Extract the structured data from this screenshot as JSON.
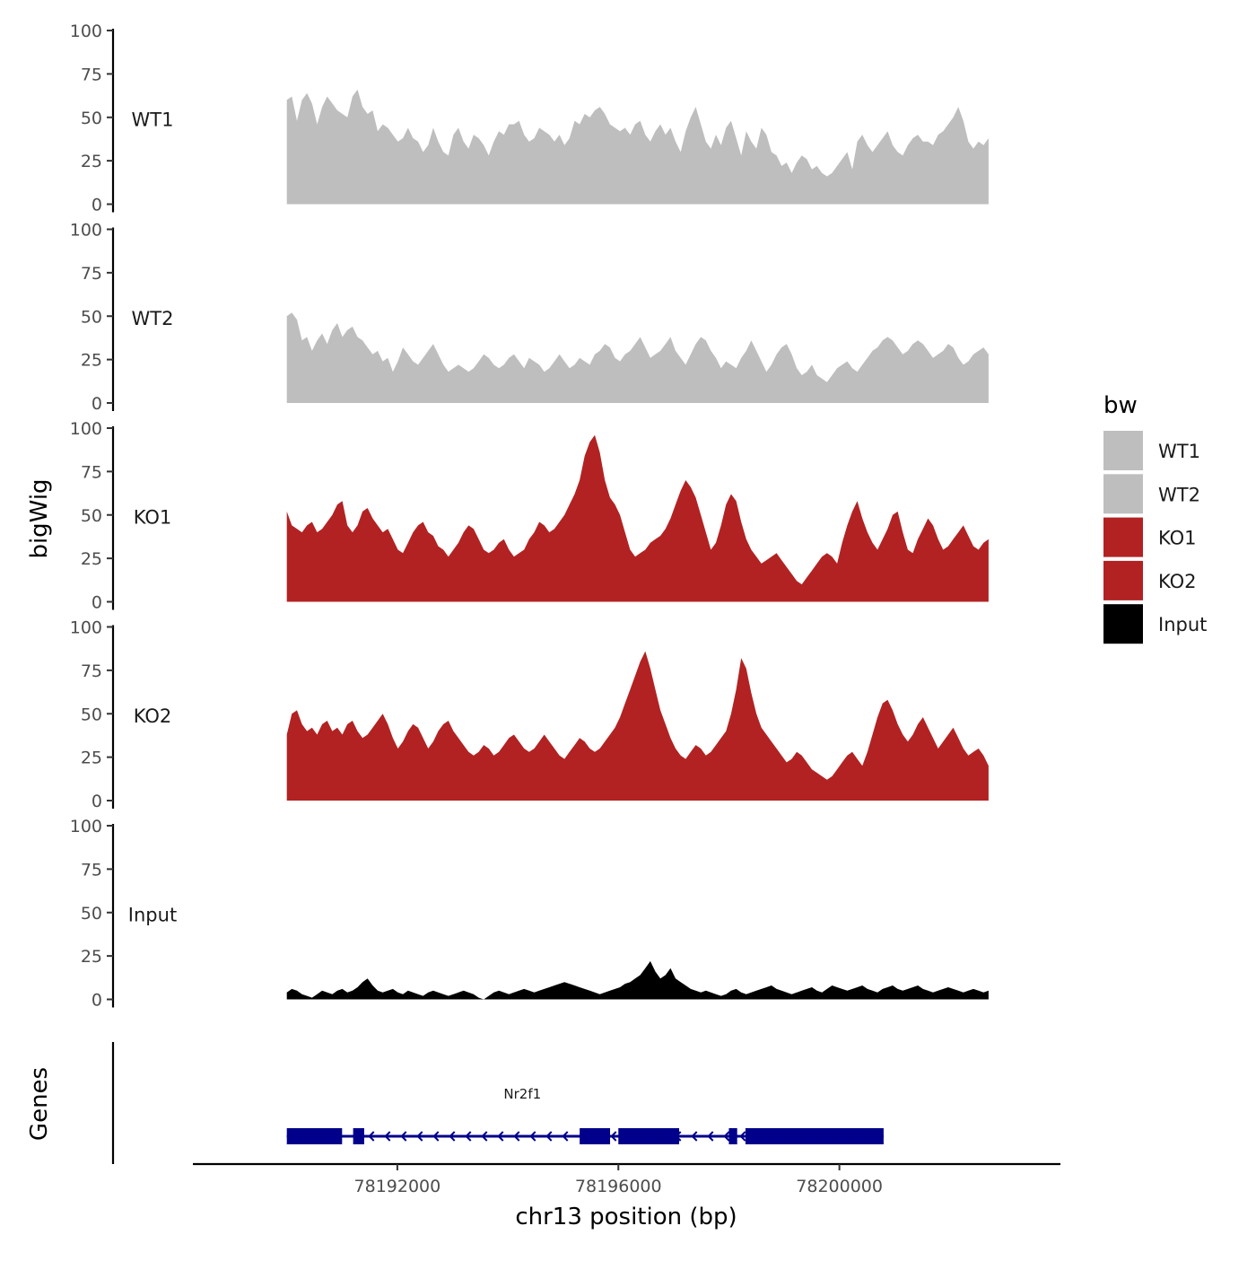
{
  "chart_data": {
    "type": "area",
    "title": "",
    "xlabel": "chr13 position (bp)",
    "ylabel": "bigWig",
    "genes_ylabel": "Genes",
    "xlim": [
      78188300,
      78204000
    ],
    "x_ticks": [
      78192000,
      78196000,
      78200000
    ],
    "x_tick_labels": [
      "78192000",
      "78196000",
      "78200000"
    ],
    "ylim": [
      0,
      100
    ],
    "y_ticks": [
      0,
      25,
      50,
      75,
      100
    ],
    "y_tick_labels": [
      "0",
      "25",
      "50",
      "75",
      "100"
    ],
    "legend": {
      "title": "bw",
      "position": "right",
      "entries": [
        {
          "label": "WT1",
          "color": "#BEBEBE"
        },
        {
          "label": "WT2",
          "color": "#BEBEBE"
        },
        {
          "label": "KO1",
          "color": "#B22222"
        },
        {
          "label": "KO2",
          "color": "#B22222"
        },
        {
          "label": "Input",
          "color": "#000000"
        }
      ]
    },
    "track_start": 78190000,
    "track_end": 78202700,
    "series": [
      {
        "name": "WT1",
        "color": "#BEBEBE",
        "values": [
          60,
          62,
          48,
          60,
          64,
          58,
          46,
          56,
          62,
          58,
          54,
          52,
          50,
          62,
          66,
          56,
          52,
          54,
          42,
          46,
          44,
          40,
          36,
          38,
          44,
          38,
          36,
          30,
          34,
          44,
          36,
          30,
          28,
          40,
          44,
          36,
          32,
          40,
          38,
          34,
          28,
          36,
          42,
          40,
          46,
          46,
          48,
          40,
          36,
          38,
          44,
          42,
          40,
          36,
          40,
          34,
          38,
          48,
          46,
          52,
          50,
          54,
          56,
          52,
          46,
          44,
          42,
          44,
          40,
          46,
          48,
          40,
          36,
          42,
          46,
          40,
          44,
          36,
          30,
          42,
          50,
          56,
          46,
          36,
          32,
          40,
          34,
          44,
          48,
          38,
          28,
          42,
          36,
          32,
          44,
          40,
          30,
          28,
          22,
          24,
          18,
          24,
          28,
          26,
          20,
          22,
          18,
          16,
          18,
          22,
          26,
          30,
          20,
          36,
          40,
          34,
          30,
          34,
          38,
          42,
          34,
          30,
          28,
          34,
          38,
          40,
          36,
          36,
          34,
          40,
          42,
          46,
          50,
          56,
          48,
          36,
          32,
          36,
          34,
          38
        ]
      },
      {
        "name": "WT2",
        "color": "#BEBEBE",
        "values": [
          50,
          52,
          48,
          36,
          38,
          30,
          36,
          40,
          34,
          42,
          46,
          38,
          42,
          44,
          38,
          36,
          32,
          28,
          30,
          24,
          26,
          18,
          24,
          32,
          28,
          24,
          22,
          26,
          30,
          34,
          28,
          22,
          18,
          20,
          22,
          20,
          18,
          20,
          24,
          28,
          26,
          22,
          20,
          22,
          26,
          28,
          24,
          20,
          26,
          24,
          22,
          18,
          20,
          24,
          28,
          24,
          20,
          22,
          26,
          24,
          22,
          28,
          30,
          34,
          32,
          26,
          24,
          28,
          30,
          34,
          38,
          32,
          26,
          28,
          30,
          34,
          38,
          30,
          26,
          22,
          28,
          34,
          38,
          36,
          30,
          26,
          20,
          24,
          22,
          20,
          26,
          30,
          36,
          30,
          24,
          18,
          22,
          28,
          32,
          34,
          28,
          20,
          16,
          18,
          22,
          16,
          14,
          12,
          16,
          20,
          22,
          24,
          20,
          18,
          22,
          26,
          30,
          32,
          36,
          38,
          36,
          32,
          28,
          30,
          34,
          36,
          34,
          30,
          26,
          28,
          30,
          34,
          32,
          26,
          22,
          24,
          28,
          30,
          32,
          28
        ]
      },
      {
        "name": "KO1",
        "color": "#B22222",
        "values": [
          52,
          44,
          42,
          40,
          44,
          46,
          40,
          42,
          46,
          50,
          56,
          58,
          44,
          40,
          44,
          52,
          54,
          48,
          44,
          40,
          42,
          36,
          30,
          28,
          34,
          40,
          44,
          46,
          40,
          38,
          32,
          30,
          26,
          30,
          34,
          40,
          44,
          42,
          36,
          30,
          28,
          30,
          34,
          36,
          30,
          26,
          28,
          30,
          36,
          40,
          46,
          44,
          40,
          42,
          46,
          50,
          56,
          62,
          70,
          84,
          92,
          96,
          86,
          70,
          60,
          56,
          50,
          40,
          30,
          26,
          28,
          30,
          34,
          36,
          38,
          42,
          48,
          56,
          64,
          70,
          66,
          60,
          50,
          40,
          30,
          34,
          44,
          56,
          62,
          58,
          46,
          36,
          30,
          26,
          22,
          24,
          26,
          28,
          24,
          20,
          16,
          12,
          10,
          14,
          18,
          22,
          26,
          28,
          26,
          22,
          34,
          44,
          52,
          58,
          48,
          40,
          34,
          30,
          36,
          42,
          50,
          52,
          40,
          30,
          28,
          36,
          42,
          48,
          44,
          36,
          30,
          32,
          36,
          40,
          44,
          38,
          32,
          30,
          34,
          36
        ]
      },
      {
        "name": "KO2",
        "color": "#B22222",
        "values": [
          38,
          50,
          52,
          44,
          40,
          42,
          38,
          44,
          46,
          40,
          42,
          38,
          44,
          46,
          40,
          36,
          38,
          42,
          46,
          50,
          44,
          36,
          30,
          34,
          40,
          44,
          42,
          36,
          30,
          34,
          40,
          44,
          46,
          40,
          36,
          32,
          28,
          26,
          28,
          32,
          30,
          26,
          28,
          32,
          36,
          38,
          34,
          30,
          28,
          30,
          34,
          38,
          34,
          30,
          26,
          24,
          28,
          32,
          36,
          34,
          30,
          28,
          30,
          34,
          38,
          42,
          48,
          56,
          64,
          72,
          80,
          86,
          76,
          64,
          52,
          44,
          36,
          30,
          26,
          24,
          28,
          32,
          30,
          26,
          28,
          32,
          36,
          40,
          50,
          64,
          82,
          76,
          62,
          50,
          42,
          38,
          34,
          30,
          26,
          22,
          24,
          28,
          26,
          22,
          18,
          16,
          14,
          12,
          14,
          18,
          22,
          26,
          28,
          24,
          20,
          28,
          38,
          48,
          56,
          58,
          52,
          44,
          38,
          34,
          38,
          44,
          48,
          42,
          36,
          30,
          34,
          38,
          42,
          36,
          30,
          26,
          28,
          30,
          26,
          20
        ]
      },
      {
        "name": "Input",
        "color": "#000000",
        "values": [
          4,
          6,
          5,
          3,
          2,
          1,
          3,
          5,
          4,
          3,
          5,
          6,
          4,
          5,
          7,
          10,
          12,
          8,
          5,
          4,
          5,
          6,
          4,
          3,
          5,
          4,
          3,
          2,
          4,
          5,
          4,
          3,
          2,
          3,
          4,
          5,
          4,
          3,
          1,
          0,
          2,
          4,
          5,
          4,
          3,
          4,
          5,
          6,
          5,
          4,
          5,
          6,
          7,
          8,
          9,
          10,
          9,
          8,
          7,
          6,
          5,
          4,
          3,
          4,
          5,
          6,
          7,
          9,
          10,
          12,
          14,
          18,
          22,
          16,
          12,
          14,
          18,
          12,
          10,
          8,
          6,
          5,
          4,
          5,
          4,
          3,
          2,
          3,
          5,
          6,
          4,
          3,
          4,
          5,
          6,
          7,
          8,
          6,
          5,
          4,
          3,
          4,
          5,
          6,
          7,
          5,
          4,
          6,
          8,
          7,
          6,
          5,
          6,
          7,
          8,
          6,
          5,
          4,
          6,
          7,
          8,
          6,
          5,
          6,
          7,
          8,
          6,
          5,
          4,
          5,
          6,
          7,
          6,
          5,
          4,
          5,
          6,
          5,
          4,
          5
        ]
      }
    ],
    "genes": [
      {
        "name": "Nr2f1",
        "strand": "-",
        "color": "#00008B",
        "start": 78190000,
        "end": 78200800,
        "blocks": [
          {
            "start": 78190000,
            "end": 78191000,
            "tall": true
          },
          {
            "start": 78191200,
            "end": 78191400,
            "tall": true
          },
          {
            "start": 78195300,
            "end": 78195850,
            "tall": true
          },
          {
            "start": 78196000,
            "end": 78197100,
            "tall": true
          },
          {
            "start": 78198000,
            "end": 78198150,
            "tall": true
          },
          {
            "start": 78198300,
            "end": 78200800,
            "tall": true
          }
        ]
      }
    ]
  }
}
